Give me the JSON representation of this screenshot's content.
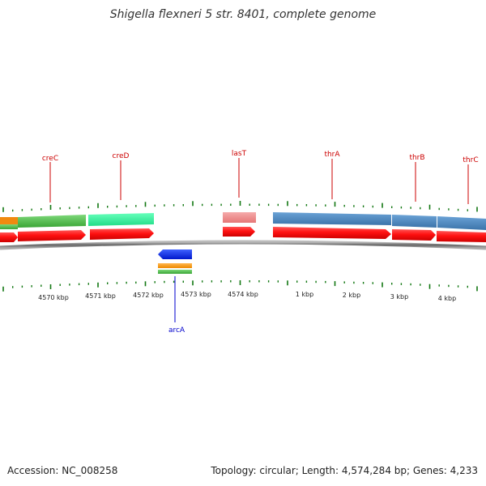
{
  "title": "Shigella flexneri 5 str. 8401, complete genome",
  "footer": {
    "accession": "Accession: NC_008258",
    "summary": "Topology: circular; Length: 4,574,284 bp; Genes: 4,233"
  },
  "colors": {
    "label_top": "#cc0000",
    "label_bottom": "#0000cc",
    "cds": "#ff1111",
    "backbone": "#888888",
    "tick": "#117711"
  },
  "axis_labels": [
    "4570 kbp",
    "4571 kbp",
    "4572 kbp",
    "4573 kbp",
    "4574 kbp",
    "1 kbp",
    "2 kbp",
    "3 kbp",
    "4 kbp"
  ],
  "genes_top": [
    {
      "label": "creC",
      "color": "#52c04a"
    },
    {
      "label": "creD",
      "color": "#33ee99"
    },
    {
      "label": "lasT",
      "color": "#ee8888"
    },
    {
      "label": "thrA",
      "color": "#4a86be"
    },
    {
      "label": "thrB",
      "color": "#4a86be"
    },
    {
      "label": "thrC",
      "color": "#4a86be"
    }
  ],
  "genes_bottom": [
    {
      "label": "arcA",
      "color": "#0b2ff0"
    }
  ]
}
